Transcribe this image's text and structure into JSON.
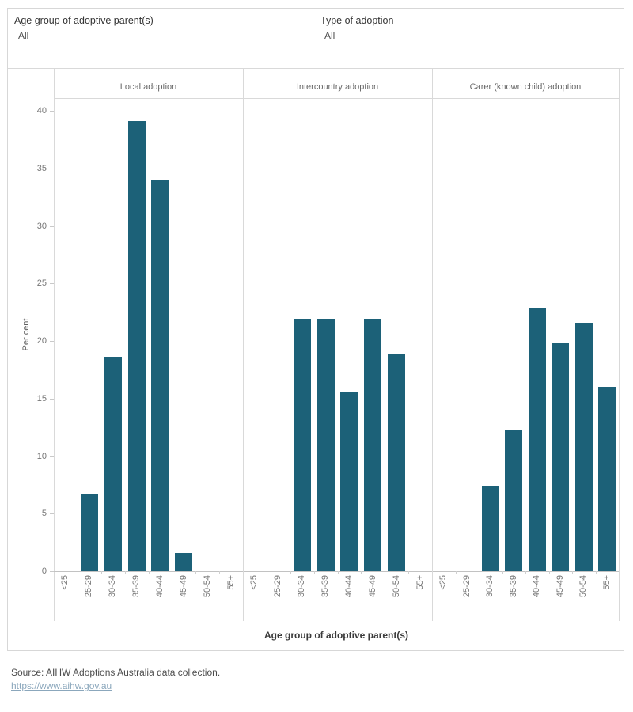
{
  "filters": [
    {
      "label": "Age group of adoptive parent(s)",
      "value": "All"
    },
    {
      "label": "Type of adoption",
      "value": "All"
    }
  ],
  "chart_data": {
    "type": "bar",
    "categories": [
      "<25",
      "25-29",
      "30-34",
      "35-39",
      "40-44",
      "45-49",
      "50-54",
      "55+"
    ],
    "series": [
      {
        "name": "Local adoption",
        "values": [
          0,
          6.7,
          18.6,
          39.1,
          34.0,
          1.6,
          0,
          0
        ]
      },
      {
        "name": "Intercountry adoption",
        "values": [
          0,
          0,
          21.9,
          21.9,
          15.6,
          21.9,
          18.8,
          0
        ]
      },
      {
        "name": "Carer (known child) adoption",
        "values": [
          0,
          0,
          7.4,
          12.3,
          22.9,
          19.8,
          21.6,
          16.0
        ]
      }
    ],
    "xlabel": "Age group of adoptive parent(s)",
    "ylabel": "Per cent",
    "ylim": [
      0,
      40
    ],
    "yticks": [
      0,
      5,
      10,
      15,
      20,
      25,
      30,
      35,
      40
    ],
    "bar_color": "#1c6178",
    "grid": false,
    "legend": false
  },
  "footer": {
    "source": "Source: AIHW Adoptions Australia data collection.",
    "link": "https://www.aihw.gov.au"
  }
}
